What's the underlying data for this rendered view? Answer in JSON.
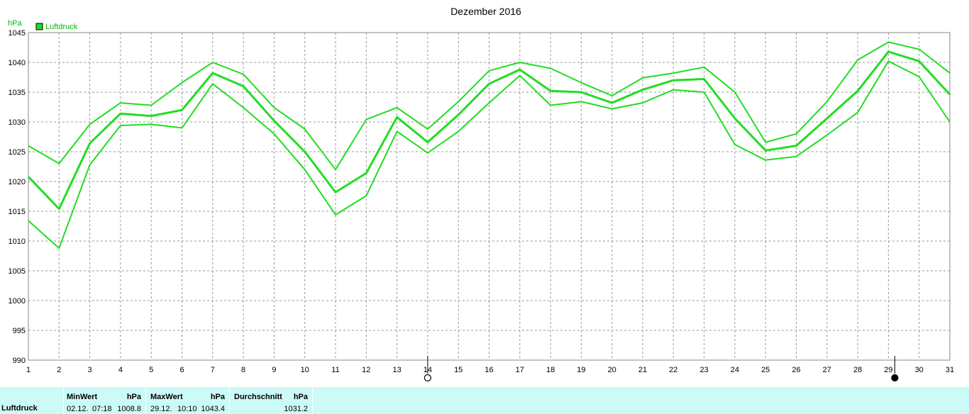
{
  "chart_data": {
    "type": "line",
    "title": "Dezember 2016",
    "ylabel": "hPa",
    "legend": "Luftdruck",
    "legend_position": "top-left",
    "color": "#22dd22",
    "grid": true,
    "xlim": [
      1,
      31
    ],
    "ylim": [
      990,
      1045
    ],
    "yticks": [
      990,
      995,
      1000,
      1005,
      1010,
      1015,
      1020,
      1025,
      1030,
      1035,
      1040,
      1045
    ],
    "x": [
      1,
      2,
      3,
      4,
      5,
      6,
      7,
      8,
      9,
      10,
      11,
      12,
      13,
      14,
      15,
      16,
      17,
      18,
      19,
      20,
      21,
      22,
      23,
      24,
      25,
      26,
      27,
      28,
      29,
      30,
      31
    ],
    "series": [
      {
        "name": "Luftdruck",
        "role": "max",
        "values": [
          1026.0,
          1023.0,
          1029.6,
          1033.2,
          1032.8,
          1036.6,
          1040.0,
          1038.0,
          1032.4,
          1028.8,
          1022.0,
          1030.4,
          1032.4,
          1028.8,
          1033.4,
          1038.6,
          1040.0,
          1039.0,
          1036.6,
          1034.4,
          1037.4,
          1038.2,
          1039.2,
          1035.0,
          1026.6,
          1028.0,
          1033.4,
          1040.4,
          1043.4,
          1042.2,
          1038.2
        ]
      },
      {
        "name": "Luftdruck",
        "role": "avg",
        "values": [
          1020.8,
          1015.4,
          1026.4,
          1031.4,
          1031.0,
          1032.0,
          1038.2,
          1036.0,
          1030.2,
          1025.0,
          1018.2,
          1021.4,
          1030.8,
          1026.6,
          1031.2,
          1036.4,
          1038.8,
          1035.2,
          1035.0,
          1033.2,
          1035.4,
          1037.0,
          1037.2,
          1030.6,
          1025.2,
          1026.0,
          1030.6,
          1035.2,
          1041.8,
          1040.2,
          1034.6
        ]
      },
      {
        "name": "Luftdruck",
        "role": "min",
        "values": [
          1013.4,
          1008.8,
          1022.8,
          1029.4,
          1029.6,
          1029.0,
          1036.4,
          1032.4,
          1028.0,
          1022.0,
          1014.4,
          1017.6,
          1028.4,
          1024.8,
          1028.4,
          1033.2,
          1037.8,
          1032.8,
          1033.4,
          1032.2,
          1033.2,
          1035.4,
          1035.0,
          1026.2,
          1023.6,
          1024.2,
          1027.8,
          1031.6,
          1040.2,
          1037.6,
          1030.0
        ]
      }
    ],
    "moon_markers": [
      {
        "day": 14,
        "phase": "full-moon"
      },
      {
        "day": 29,
        "phase": "new-moon"
      }
    ]
  },
  "footer": {
    "row_label": "Luftdruck",
    "min": {
      "label": "MinWert",
      "unit": "hPa",
      "date": "02.12.",
      "time": "07:18",
      "value": "1008.8"
    },
    "max": {
      "label": "MaxWert",
      "unit": "hPa",
      "date": "29.12.",
      "time": "10:10",
      "value": "1043.4"
    },
    "avg": {
      "label": "Durchschnitt",
      "unit": "hPa",
      "value": "1031.2"
    }
  }
}
